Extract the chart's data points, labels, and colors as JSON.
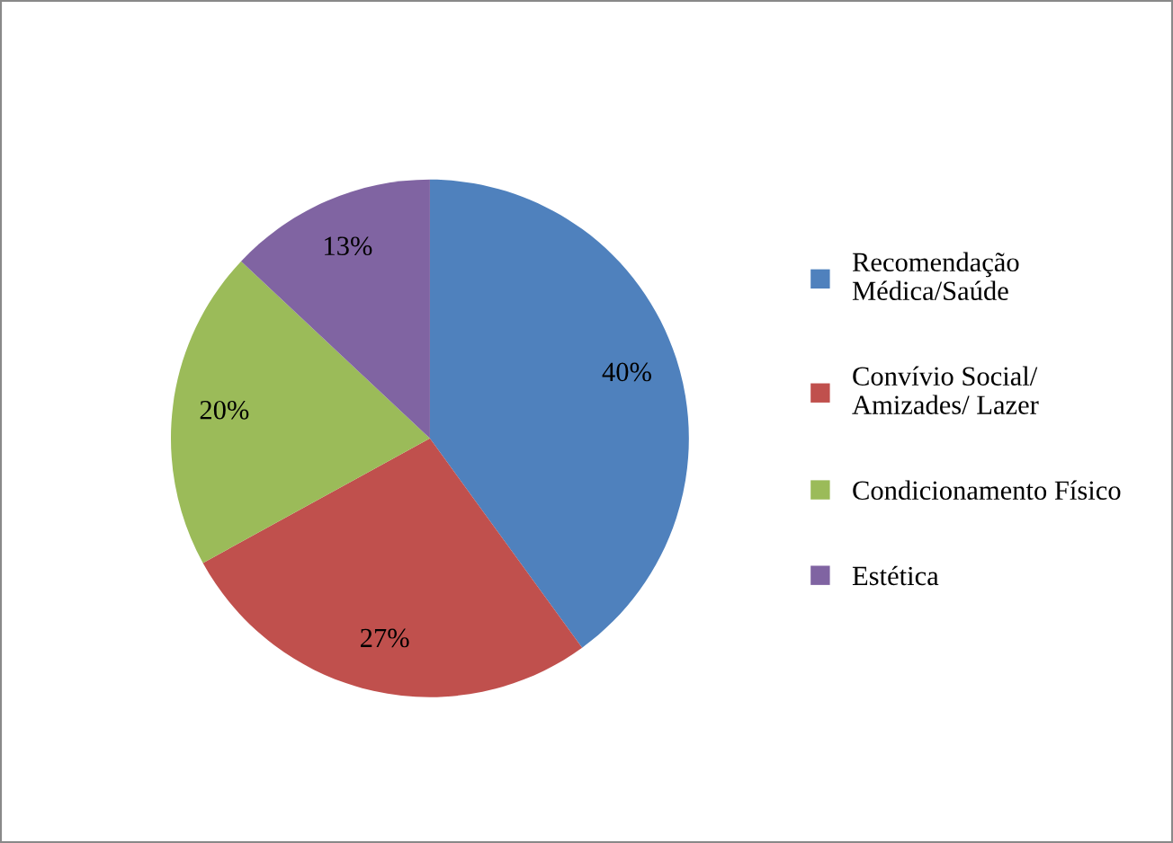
{
  "chart_data": {
    "type": "pie",
    "categories": [
      "Recomendação\nMédica/Saúde",
      "Convívio Social/\nAmizades/ Lazer",
      "Condicionamento Físico",
      "Estética"
    ],
    "values": [
      40,
      27,
      20,
      13
    ],
    "colors": [
      "#4f81bd",
      "#c0504d",
      "#9bbb59",
      "#8064a2"
    ],
    "value_labels": [
      "40%",
      "27%",
      "20%",
      "13%"
    ],
    "legend": "right"
  }
}
